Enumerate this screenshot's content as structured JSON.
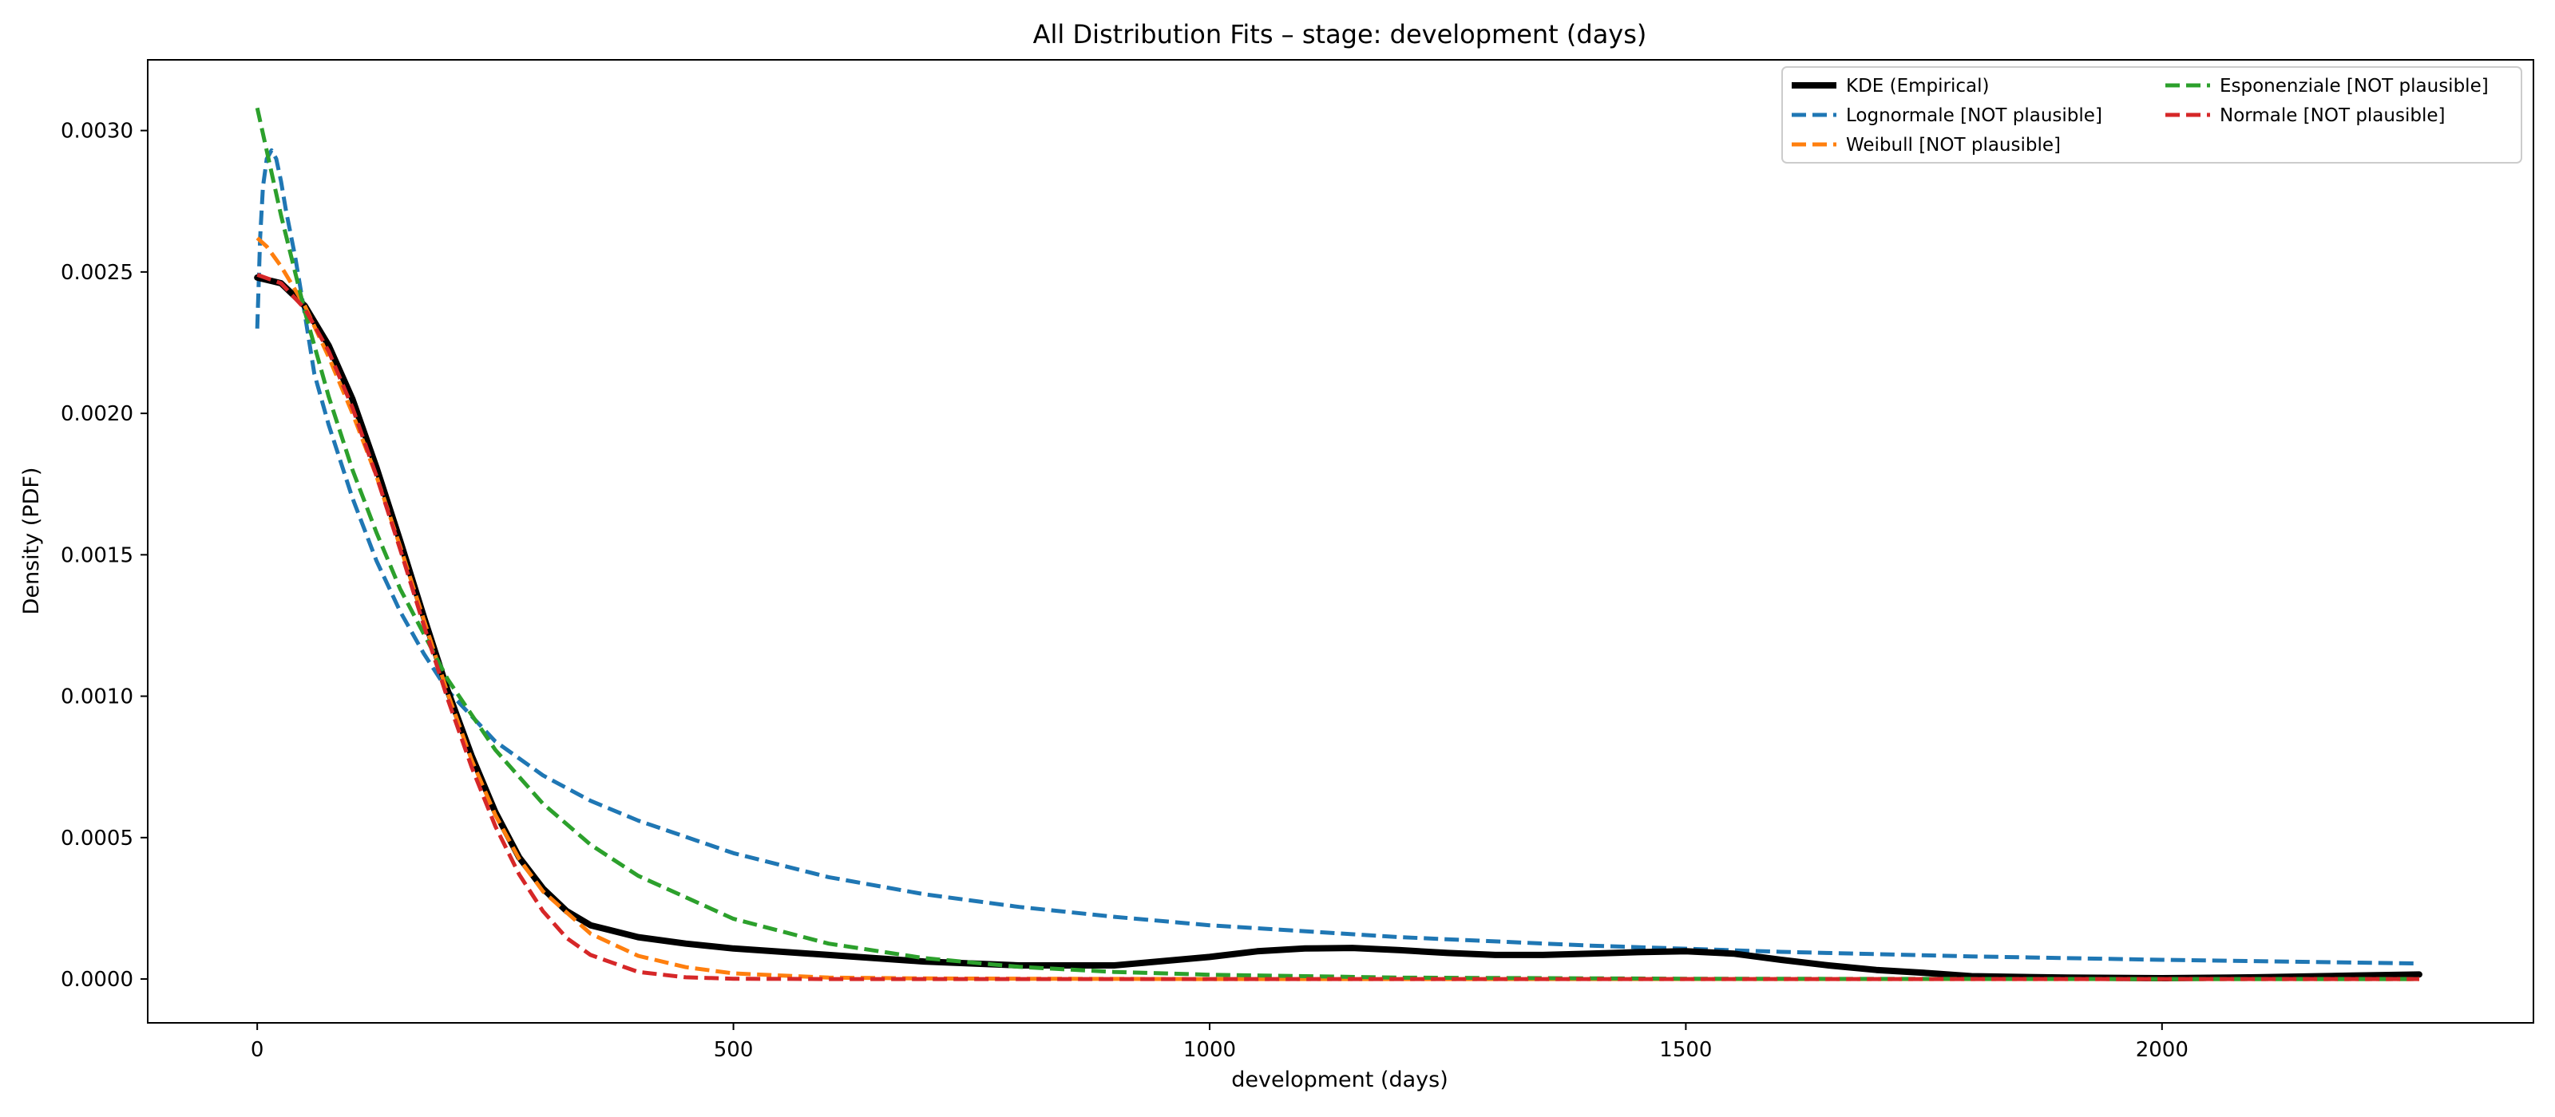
{
  "chart_data": {
    "type": "line",
    "title": "All Distribution Fits – stage: development (days)",
    "xlabel": "development (days)",
    "ylabel": "Density (PDF)",
    "xlim": [
      -115,
      2390
    ],
    "ylim": [
      -0.000155,
      0.00325
    ],
    "xticks": [
      0,
      500,
      1000,
      1500,
      2000
    ],
    "xtick_labels": [
      "0",
      "500",
      "1000",
      "1500",
      "2000"
    ],
    "yticks": [
      0,
      0.0005,
      0.001,
      0.0015,
      0.002,
      0.0025,
      0.003
    ],
    "ytick_labels": [
      "0.0000",
      "0.0005",
      "0.0010",
      "0.0015",
      "0.0020",
      "0.0025",
      "0.0030"
    ],
    "grid": false,
    "legend_position": "top-right",
    "legend_columns": 2,
    "series": [
      {
        "name": "KDE (Empirical)",
        "color": "#000000",
        "style": "solid",
        "x": [
          0,
          25,
          50,
          75,
          100,
          125,
          150,
          175,
          200,
          225,
          250,
          275,
          300,
          325,
          350,
          400,
          450,
          500,
          600,
          700,
          800,
          900,
          1000,
          1050,
          1100,
          1150,
          1200,
          1250,
          1300,
          1350,
          1400,
          1450,
          1500,
          1550,
          1600,
          1650,
          1700,
          1750,
          1800,
          1900,
          2000,
          2100,
          2200,
          2270
        ],
        "y": [
          0.00248,
          0.00246,
          0.00238,
          0.00224,
          0.00205,
          0.00181,
          0.00155,
          0.00128,
          0.00102,
          0.00079,
          0.00059,
          0.00043,
          0.00032,
          0.00024,
          0.00019,
          0.000148,
          0.000125,
          0.000108,
          8.5e-05,
          6.2e-05,
          4.8e-05,
          4.8e-05,
          7.8e-05,
          9.8e-05,
          0.000108,
          0.00011,
          0.000102,
          9.2e-05,
          8.5e-05,
          8.5e-05,
          9e-05,
          9.5e-05,
          9.8e-05,
          9e-05,
          6.8e-05,
          4.8e-05,
          3.2e-05,
          2.2e-05,
          1e-05,
          5e-06,
          3e-06,
          6e-06,
          1.2e-05,
          1.6e-05
        ]
      },
      {
        "name": "Lognormale [NOT plausible]",
        "color": "#1f77b4",
        "style": "dashed",
        "x": [
          0,
          3,
          6,
          10,
          15,
          20,
          25,
          30,
          40,
          50,
          60,
          75,
          100,
          125,
          150,
          175,
          200,
          250,
          300,
          350,
          400,
          500,
          600,
          700,
          800,
          900,
          1000,
          1200,
          1400,
          1600,
          1800,
          2000,
          2270
        ],
        "y": [
          0.0023,
          0.00262,
          0.0028,
          0.0029,
          0.00293,
          0.0029,
          0.00282,
          0.00272,
          0.00255,
          0.00235,
          0.00214,
          0.00196,
          0.0017,
          0.00148,
          0.0013,
          0.00115,
          0.00102,
          0.00084,
          0.00072,
          0.00063,
          0.00056,
          0.000445,
          0.00036,
          0.0003,
          0.000255,
          0.00022,
          0.00019,
          0.000148,
          0.000118,
          9.6e-05,
          8e-05,
          6.8e-05,
          5.5e-05
        ]
      },
      {
        "name": "Weibull [NOT plausible]",
        "color": "#ff7f0e",
        "style": "dashed",
        "x": [
          0,
          10,
          25,
          50,
          75,
          100,
          125,
          150,
          175,
          200,
          225,
          250,
          275,
          300,
          350,
          400,
          450,
          500,
          600,
          700,
          800,
          1000,
          1500,
          2000,
          2270
        ],
        "y": [
          0.00262,
          0.00259,
          0.00252,
          0.00238,
          0.0022,
          0.002,
          0.00178,
          0.00153,
          0.00127,
          0.00101,
          0.000775,
          0.00058,
          0.000425,
          0.00031,
          0.00016,
          8.2e-05,
          4.2e-05,
          2e-05,
          5e-06,
          2e-06,
          1e-06,
          0,
          0,
          0,
          0
        ]
      },
      {
        "name": "Esponenziale [NOT plausible]",
        "color": "#2ca02c",
        "style": "dashed",
        "x": [
          0,
          25,
          50,
          75,
          100,
          125,
          150,
          200,
          250,
          300,
          350,
          400,
          500,
          600,
          700,
          800,
          900,
          1000,
          1200,
          1500,
          2000,
          2270
        ],
        "y": [
          0.00308,
          0.0027,
          0.00236,
          0.00206,
          0.0018,
          0.00158,
          0.00138,
          0.00106,
          0.00081,
          0.00062,
          0.000475,
          0.000365,
          0.000213,
          0.000125,
          7.4e-05,
          4.3e-05,
          2.5e-05,
          1.5e-05,
          5e-06,
          1e-06,
          0,
          0
        ]
      },
      {
        "name": "Normale [NOT plausible]",
        "color": "#d62728",
        "style": "dashed",
        "x": [
          0,
          25,
          50,
          75,
          100,
          125,
          150,
          175,
          200,
          225,
          250,
          275,
          300,
          325,
          350,
          400,
          450,
          500,
          600,
          700,
          1000,
          1500,
          2000,
          2270
        ],
        "y": [
          0.00249,
          0.00246,
          0.00237,
          0.00222,
          0.00202,
          0.00178,
          0.00152,
          0.00125,
          0.00099,
          0.00075,
          0.00054,
          0.00037,
          0.00024,
          0.000145,
          8.5e-05,
          2.5e-05,
          6e-06,
          1e-06,
          0,
          0,
          0,
          0,
          0,
          0
        ]
      }
    ]
  }
}
